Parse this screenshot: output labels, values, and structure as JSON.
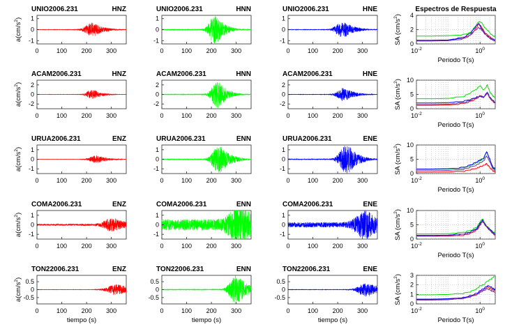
{
  "figure": {
    "xlabel_time": "tiempo (s)",
    "ylabel_acc": "a(cm/s",
    "ylabel_acc_sup": "2",
    "ylabel_acc_tail": ")",
    "xlabel_period": "Periodo T(s)",
    "ylabel_sa": "SA (cm/s",
    "ylabel_sa_sup": "2",
    "ylabel_sa_tail": ")",
    "spectra_title": "Espectros de Respuesta",
    "component_colors": [
      "#ff0000",
      "#00ff00",
      "#0000ff"
    ],
    "spectrum_colors": [
      "#00dd00",
      "#ff0000",
      "#0000ff",
      "#7030a0"
    ]
  },
  "chart_data": [
    {
      "type": "line",
      "row": 0,
      "col": 0,
      "station": "UNIO2006.231",
      "component": "HNZ",
      "xlim": [
        0,
        360
      ],
      "xticks": [
        0,
        100,
        200,
        300
      ],
      "ylim": [
        -1.3,
        1.3
      ],
      "yticks": [
        -1,
        0,
        1
      ],
      "amplitude": 0.55,
      "center": 218,
      "spread": 30,
      "seed": 11
    },
    {
      "type": "line",
      "row": 0,
      "col": 1,
      "station": "UNIO2006.231",
      "component": "HNN",
      "xlim": [
        0,
        360
      ],
      "xticks": [
        0,
        100,
        200,
        300
      ],
      "ylim": [
        -1.3,
        1.3
      ],
      "yticks": [
        -1,
        0,
        1
      ],
      "amplitude": 1.1,
      "center": 212,
      "spread": 26,
      "seed": 12
    },
    {
      "type": "line",
      "row": 0,
      "col": 2,
      "station": "UNIO2006.231",
      "component": "HNE",
      "xlim": [
        0,
        360
      ],
      "xticks": [
        0,
        100,
        200,
        300
      ],
      "ylim": [
        -1.3,
        1.3
      ],
      "yticks": [
        -1,
        0,
        1
      ],
      "amplitude": 0.6,
      "center": 218,
      "spread": 32,
      "seed": 13
    },
    {
      "type": "line",
      "row": 1,
      "col": 0,
      "station": "ACAM2006.231",
      "component": "HNZ",
      "xlim": [
        0,
        360
      ],
      "xticks": [
        0,
        100,
        200,
        300
      ],
      "ylim": [
        -3,
        3
      ],
      "yticks": [
        -2,
        0,
        2
      ],
      "amplitude": 0.9,
      "center": 220,
      "spread": 24,
      "seed": 21
    },
    {
      "type": "line",
      "row": 1,
      "col": 1,
      "station": "ACAM2006.231",
      "component": "HNN",
      "xlim": [
        0,
        360
      ],
      "xticks": [
        0,
        100,
        200,
        300
      ],
      "ylim": [
        -3,
        3
      ],
      "yticks": [
        -2,
        0,
        2
      ],
      "amplitude": 2.4,
      "center": 222,
      "spread": 26,
      "seed": 22
    },
    {
      "type": "line",
      "row": 1,
      "col": 2,
      "station": "ACAM2006.231",
      "component": "HNE",
      "xlim": [
        0,
        360
      ],
      "xticks": [
        0,
        100,
        200,
        300
      ],
      "ylim": [
        -3,
        3
      ],
      "yticks": [
        -2,
        0,
        2
      ],
      "amplitude": 1.2,
      "center": 222,
      "spread": 28,
      "seed": 23
    },
    {
      "type": "line",
      "row": 2,
      "col": 0,
      "station": "URUA2006.231",
      "component": "ENZ",
      "xlim": [
        0,
        360
      ],
      "xticks": [
        0,
        100,
        200,
        300
      ],
      "ylim": [
        -1.5,
        1.5
      ],
      "yticks": [
        -1,
        0,
        1
      ],
      "amplitude": 0.35,
      "center": 235,
      "spread": 28,
      "seed": 31
    },
    {
      "type": "line",
      "row": 2,
      "col": 1,
      "station": "URUA2006.231",
      "component": "ENN",
      "xlim": [
        0,
        360
      ],
      "xticks": [
        0,
        100,
        200,
        300
      ],
      "ylim": [
        -1.5,
        1.5
      ],
      "yticks": [
        -1,
        0,
        1
      ],
      "amplitude": 1.2,
      "center": 228,
      "spread": 30,
      "seed": 32
    },
    {
      "type": "line",
      "row": 2,
      "col": 2,
      "station": "URUA2006.231",
      "component": "ENE",
      "xlim": [
        0,
        360
      ],
      "xticks": [
        0,
        100,
        200,
        300
      ],
      "ylim": [
        -1.5,
        1.5
      ],
      "yticks": [
        -1,
        0,
        1
      ],
      "amplitude": 1.3,
      "center": 232,
      "spread": 30,
      "seed": 33
    },
    {
      "type": "line",
      "row": 3,
      "col": 0,
      "station": "COMA2006.231",
      "component": "ENZ",
      "xlim": [
        0,
        360
      ],
      "xticks": [
        0,
        100,
        200,
        300
      ],
      "ylim": [
        -1.5,
        1.5
      ],
      "yticks": [
        -1,
        0,
        1
      ],
      "amplitude": 0.55,
      "center": 300,
      "spread": 38,
      "seed": 41,
      "noise": 0.08
    },
    {
      "type": "line",
      "row": 3,
      "col": 1,
      "station": "COMA2006.231",
      "component": "ENN",
      "xlim": [
        0,
        360
      ],
      "xticks": [
        0,
        100,
        200,
        300
      ],
      "ylim": [
        -1.5,
        1.5
      ],
      "yticks": [
        -1,
        0,
        1
      ],
      "amplitude": 1.35,
      "center": 305,
      "spread": 40,
      "seed": 42,
      "noise": 0.22
    },
    {
      "type": "line",
      "row": 3,
      "col": 2,
      "station": "COMA2006.231",
      "component": "ENE",
      "xlim": [
        0,
        360
      ],
      "xticks": [
        0,
        100,
        200,
        300
      ],
      "ylim": [
        -1.5,
        1.5
      ],
      "yticks": [
        -1,
        0,
        1
      ],
      "amplitude": 1.1,
      "center": 305,
      "spread": 40,
      "seed": 43,
      "noise": 0.12
    },
    {
      "type": "line",
      "row": 4,
      "col": 0,
      "station": "TON22006.231",
      "component": "ENZ",
      "xlim": [
        0,
        360
      ],
      "xticks": [
        0,
        100,
        200,
        300
      ],
      "ylim": [
        -0.9,
        0.9
      ],
      "yticks": [
        -0.5,
        0,
        0.5
      ],
      "amplitude": 0.28,
      "center": 318,
      "spread": 42,
      "seed": 51
    },
    {
      "type": "line",
      "row": 4,
      "col": 1,
      "station": "TON22006.231",
      "component": "ENN",
      "xlim": [
        0,
        360
      ],
      "xticks": [
        0,
        100,
        200,
        300
      ],
      "ylim": [
        -0.9,
        0.9
      ],
      "yticks": [
        -0.5,
        0,
        0.5
      ],
      "amplitude": 0.75,
      "center": 298,
      "spread": 30,
      "seed": 52
    },
    {
      "type": "line",
      "row": 4,
      "col": 2,
      "station": "TON22006.231",
      "component": "ENE",
      "xlim": [
        0,
        360
      ],
      "xticks": [
        0,
        100,
        200,
        300
      ],
      "ylim": [
        -0.9,
        0.9
      ],
      "yticks": [
        -0.5,
        0,
        0.5
      ],
      "amplitude": 0.38,
      "center": 312,
      "spread": 36,
      "seed": 53
    },
    {
      "type": "line",
      "row": 0,
      "col": 3,
      "kind": "spectrum",
      "xscale": "log",
      "xlim": [
        0.01,
        3
      ],
      "xticks": [
        0.01,
        1
      ],
      "xtick_labels": [
        "10",
        "10"
      ],
      "xtick_exps": [
        "-2",
        "0"
      ],
      "ylim": [
        0,
        4
      ],
      "yticks": [
        0,
        2,
        4
      ],
      "grid": true,
      "title": "Espectros de Respuesta",
      "x": [
        0.01,
        0.03,
        0.1,
        0.3,
        0.5,
        0.7,
        0.9,
        1.1,
        1.4,
        1.8,
        2.3,
        3.0
      ],
      "series": [
        {
          "name": "green",
          "values": [
            1.1,
            1.1,
            1.15,
            1.3,
            1.6,
            2.4,
            3.1,
            3.0,
            2.3,
            1.8,
            1.3,
            1.0
          ]
        },
        {
          "name": "red",
          "values": [
            0.5,
            0.5,
            0.55,
            0.8,
            1.3,
            2.0,
            2.8,
            2.4,
            1.6,
            1.2,
            0.8,
            0.5
          ]
        },
        {
          "name": "blue",
          "values": [
            0.5,
            0.5,
            0.55,
            0.9,
            1.5,
            2.3,
            2.9,
            2.2,
            1.5,
            1.0,
            0.7,
            0.5
          ]
        },
        {
          "name": "purple",
          "values": [
            0.4,
            0.4,
            0.45,
            0.7,
            1.2,
            1.9,
            2.3,
            2.0,
            1.4,
            1.0,
            0.6,
            0.4
          ]
        }
      ]
    },
    {
      "type": "line",
      "row": 1,
      "col": 3,
      "kind": "spectrum",
      "xscale": "log",
      "xlim": [
        0.01,
        3
      ],
      "xticks": [
        0.01,
        1
      ],
      "xtick_labels": [
        "10",
        "10"
      ],
      "xtick_exps": [
        "-2",
        "0"
      ],
      "ylim": [
        0,
        10
      ],
      "yticks": [
        0,
        5,
        10
      ],
      "grid": true,
      "x": [
        0.01,
        0.03,
        0.1,
        0.3,
        0.5,
        0.8,
        1.0,
        1.3,
        1.7,
        2.0,
        2.5,
        3.0
      ],
      "series": [
        {
          "name": "green",
          "values": [
            3.5,
            3.5,
            3.6,
            4.2,
            5.5,
            7.0,
            8.2,
            6.5,
            8.3,
            6.0,
            4.5,
            3.8
          ]
        },
        {
          "name": "red",
          "values": [
            1.2,
            1.2,
            1.3,
            1.8,
            2.6,
            3.6,
            4.6,
            4.0,
            5.5,
            3.8,
            2.6,
            1.8
          ]
        },
        {
          "name": "blue",
          "values": [
            2.0,
            2.0,
            2.1,
            2.6,
            3.3,
            4.1,
            4.4,
            4.0,
            5.8,
            4.0,
            3.0,
            2.2
          ]
        },
        {
          "name": "purple",
          "values": [
            1.5,
            1.5,
            1.6,
            2.1,
            2.9,
            3.9,
            4.4,
            4.0,
            5.5,
            3.9,
            2.8,
            2.0
          ]
        }
      ]
    },
    {
      "type": "line",
      "row": 2,
      "col": 3,
      "kind": "spectrum",
      "xscale": "log",
      "xlim": [
        0.01,
        3
      ],
      "xticks": [
        0.01,
        1
      ],
      "xtick_labels": [
        "10",
        "10"
      ],
      "xtick_exps": [
        "-2",
        "0"
      ],
      "ylim": [
        0,
        10
      ],
      "yticks": [
        0,
        5,
        10
      ],
      "grid": true,
      "x": [
        0.01,
        0.03,
        0.1,
        0.3,
        0.5,
        0.8,
        1.0,
        1.3,
        1.6,
        2.0,
        2.5,
        3.0
      ],
      "series": [
        {
          "name": "green",
          "values": [
            1.5,
            1.5,
            1.6,
            2.0,
            2.8,
            3.8,
            4.5,
            5.2,
            7.5,
            5.0,
            2.2,
            1.5
          ]
        },
        {
          "name": "red",
          "values": [
            0.5,
            0.5,
            0.55,
            0.8,
            1.3,
            1.9,
            2.4,
            2.8,
            3.5,
            2.2,
            1.0,
            0.5
          ]
        },
        {
          "name": "blue",
          "values": [
            1.6,
            1.6,
            1.7,
            2.1,
            3.0,
            4.0,
            4.8,
            5.3,
            7.8,
            5.2,
            2.3,
            1.6
          ]
        },
        {
          "name": "purple",
          "values": [
            1.0,
            1.0,
            1.1,
            1.5,
            2.2,
            3.1,
            3.8,
            4.4,
            6.2,
            4.2,
            1.8,
            1.1
          ]
        }
      ]
    },
    {
      "type": "line",
      "row": 3,
      "col": 3,
      "kind": "spectrum",
      "xscale": "log",
      "xlim": [
        0.01,
        3
      ],
      "xticks": [
        0.01,
        1
      ],
      "xtick_labels": [
        "10",
        "10"
      ],
      "xtick_exps": [
        "-2",
        "0"
      ],
      "ylim": [
        0,
        10
      ],
      "yticks": [
        0,
        5,
        10
      ],
      "grid": true,
      "x": [
        0.01,
        0.03,
        0.1,
        0.3,
        0.5,
        0.8,
        1.0,
        1.2,
        1.5,
        2.0,
        2.5,
        3.0
      ],
      "series": [
        {
          "name": "green",
          "values": [
            1.8,
            1.8,
            1.9,
            2.3,
            3.0,
            4.2,
            6.0,
            7.2,
            5.0,
            3.5,
            2.6,
            2.0
          ]
        },
        {
          "name": "red",
          "values": [
            1.0,
            1.0,
            1.05,
            1.4,
            2.0,
            3.2,
            4.8,
            6.2,
            4.6,
            3.2,
            2.0,
            1.3
          ]
        },
        {
          "name": "blue",
          "values": [
            1.3,
            1.3,
            1.4,
            1.8,
            2.5,
            3.8,
            5.6,
            6.6,
            4.8,
            3.4,
            2.4,
            1.6
          ]
        },
        {
          "name": "purple",
          "values": [
            1.1,
            1.1,
            1.2,
            1.6,
            2.2,
            3.4,
            5.0,
            6.4,
            4.6,
            3.2,
            2.1,
            1.4
          ]
        }
      ]
    },
    {
      "type": "line",
      "row": 4,
      "col": 3,
      "kind": "spectrum",
      "xscale": "log",
      "xlim": [
        0.01,
        3
      ],
      "xticks": [
        0.01,
        1
      ],
      "xtick_labels": [
        "10",
        "10"
      ],
      "xtick_exps": [
        "-2",
        "0"
      ],
      "ylim": [
        0,
        3
      ],
      "yticks": [
        0,
        1,
        2,
        3
      ],
      "grid": true,
      "x": [
        0.01,
        0.03,
        0.1,
        0.3,
        0.5,
        0.8,
        1.0,
        1.3,
        1.7,
        2.2,
        2.6,
        3.0
      ],
      "series": [
        {
          "name": "green",
          "values": [
            0.95,
            0.95,
            1.0,
            1.1,
            1.3,
            1.6,
            1.9,
            2.0,
            2.4,
            2.6,
            2.8,
            2.9
          ]
        },
        {
          "name": "red",
          "values": [
            0.45,
            0.45,
            0.5,
            0.6,
            0.8,
            1.0,
            1.3,
            1.5,
            1.8,
            1.6,
            1.5,
            1.4
          ]
        },
        {
          "name": "blue",
          "values": [
            0.5,
            0.5,
            0.55,
            0.65,
            0.85,
            1.1,
            1.4,
            1.6,
            1.9,
            1.8,
            1.6,
            1.5
          ]
        },
        {
          "name": "purple",
          "values": [
            0.4,
            0.4,
            0.45,
            0.55,
            0.75,
            1.0,
            1.2,
            1.4,
            1.6,
            1.4,
            1.3,
            1.2
          ]
        }
      ]
    }
  ]
}
